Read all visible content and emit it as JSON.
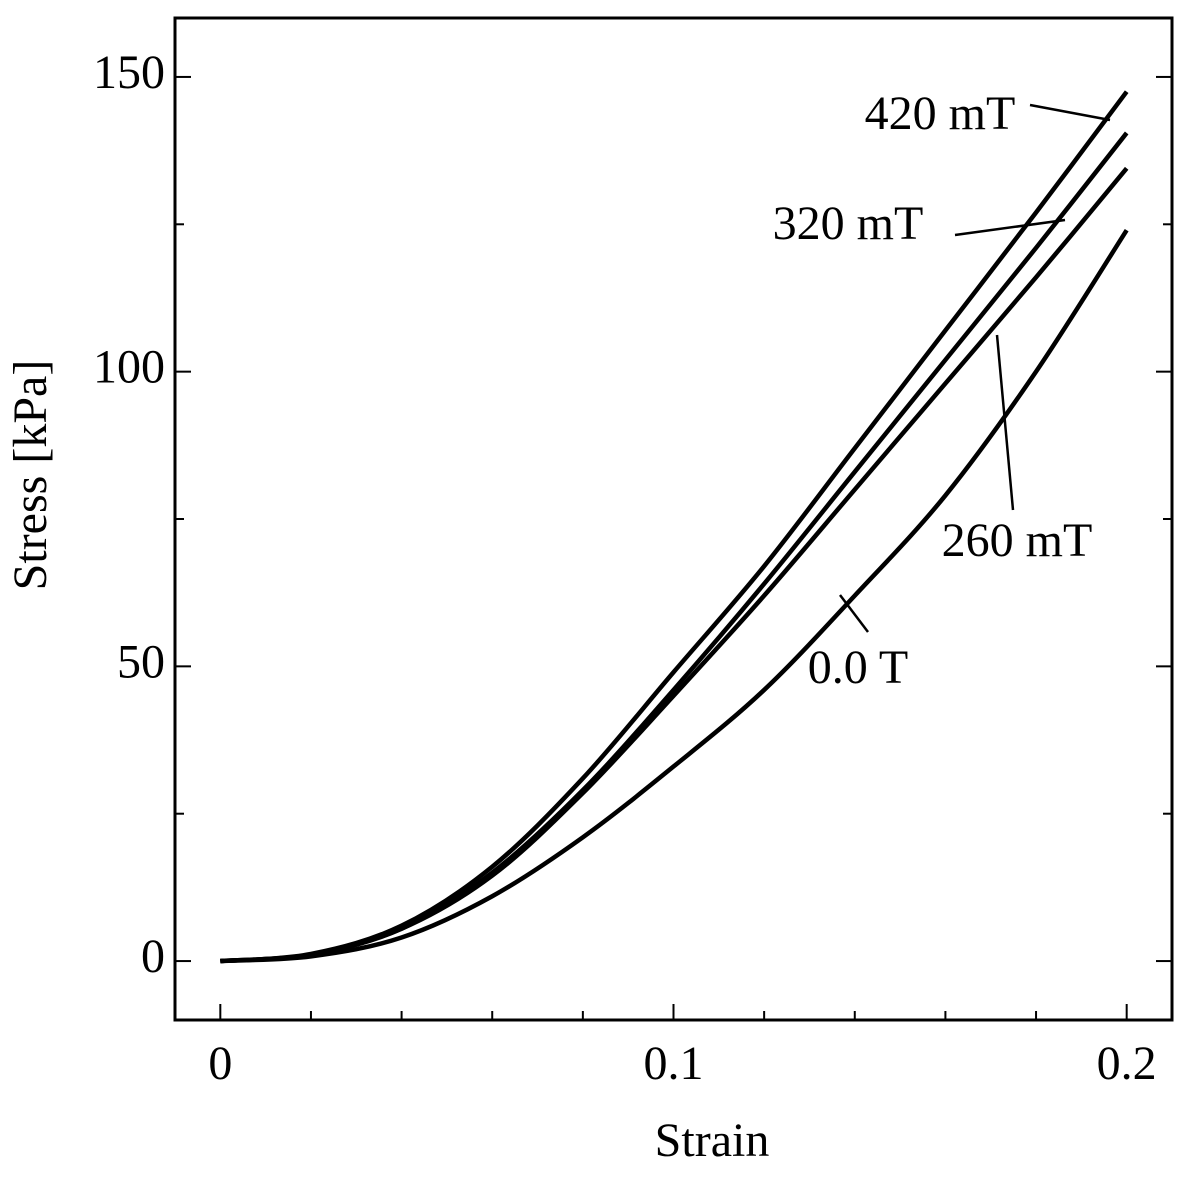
{
  "chart_data": {
    "type": "line",
    "xlabel": "Strain",
    "ylabel": "Stress [kPa]",
    "x": [
      0,
      0.02,
      0.04,
      0.06,
      0.08,
      0.1,
      0.12,
      0.14,
      0.16,
      0.18,
      0.2
    ],
    "series": [
      {
        "name": "420 mT",
        "color": "#000000",
        "values": [
          0,
          1.2,
          6,
          16,
          31,
          49,
          67,
          87,
          107,
          127,
          147.5
        ]
      },
      {
        "name": "320 mT",
        "color": "#000000",
        "values": [
          0,
          1.1,
          5.5,
          15,
          29,
          46,
          64,
          83,
          102,
          121,
          140.5
        ]
      },
      {
        "name": "260 mT",
        "color": "#000000",
        "values": [
          0,
          1.1,
          5.5,
          14.5,
          28.5,
          45,
          62,
          80,
          98,
          116,
          134.5
        ]
      },
      {
        "name": "0.0 T",
        "color": "#000000",
        "values": [
          0,
          0.8,
          4,
          11,
          21,
          33,
          46,
          62,
          79,
          100,
          124
        ]
      }
    ],
    "xlim": [
      -0.01,
      0.21
    ],
    "xticks": [
      0,
      0.1,
      0.2
    ],
    "xminorticks": [
      0.02,
      0.04,
      0.06,
      0.08,
      0.12,
      0.14,
      0.16,
      0.18
    ],
    "ylim": [
      -10,
      160
    ],
    "yticks": [
      0,
      50,
      100,
      150
    ],
    "yminorticks": [
      25,
      75,
      125
    ]
  }
}
